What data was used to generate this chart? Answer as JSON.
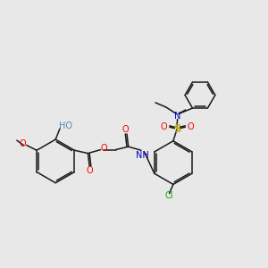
{
  "background_color": "#e8e8e8",
  "bond_color": "#1a1a1a",
  "atom_colors": {
    "O": "#ff0000",
    "N": "#0000cc",
    "S": "#ccaa00",
    "Cl": "#00aa00",
    "HO": "#5588aa",
    "C": "#1a1a1a"
  },
  "font_size": 7.0,
  "lw": 1.1
}
